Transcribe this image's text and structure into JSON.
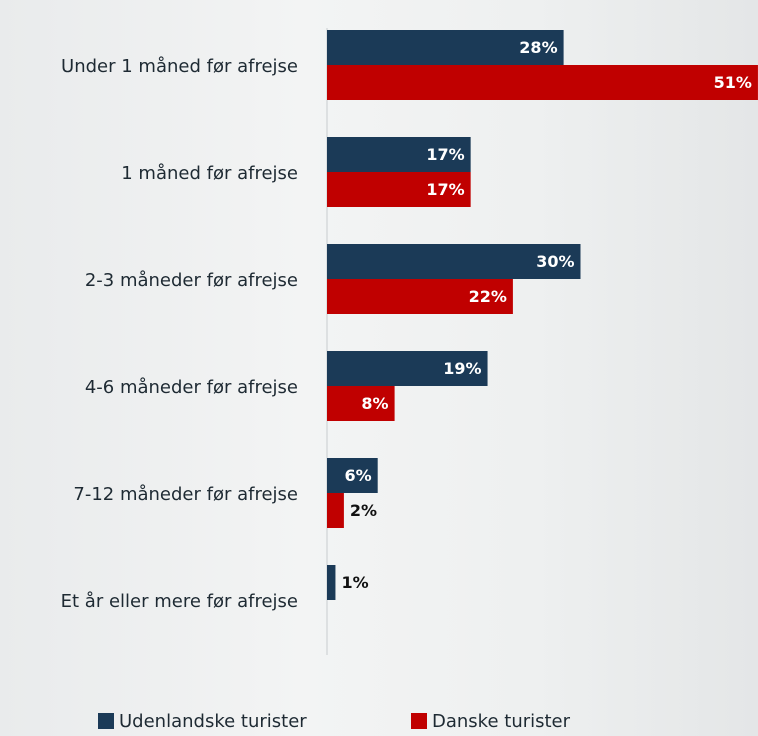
{
  "chart_data": {
    "type": "bar",
    "orientation": "horizontal",
    "categories": [
      "Under 1 måned før afrejse",
      "1 måned før afrejse",
      "2-3 måneder før afrejse",
      "4-6 måneder før afrejse",
      "7-12 måneder før afrejse",
      "Et år eller mere før afrejse"
    ],
    "series": [
      {
        "name": "Udenlandske turister",
        "color": "#1b3a57",
        "values": [
          28,
          17,
          30,
          19,
          6,
          1
        ],
        "value_labels": [
          "28%",
          "17%",
          "30%",
          "19%",
          "6%",
          "1%"
        ]
      },
      {
        "name": "Danske turister",
        "color": "#c00000",
        "values": [
          51,
          17,
          22,
          8,
          2,
          null
        ],
        "value_labels": [
          "51%",
          "17%",
          "22%",
          "8%",
          "2%",
          null
        ]
      }
    ],
    "legend": "bottom"
  }
}
